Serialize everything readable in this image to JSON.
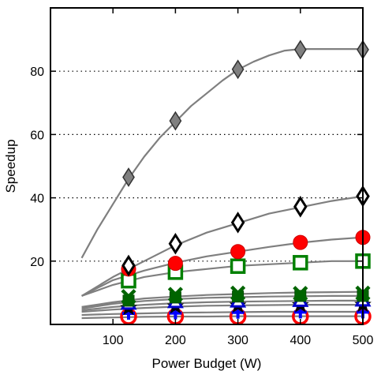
{
  "chart_data": {
    "type": "line",
    "xlabel": "Power Budget (W)",
    "ylabel": "Speedup",
    "xlim": [
      0,
      500
    ],
    "ylim": [
      0,
      100
    ],
    "xticks": [
      100,
      200,
      300,
      400,
      500
    ],
    "yticks": [
      20,
      40,
      60,
      80
    ],
    "grid": "horizontal dotted",
    "curve_color": "#7f7f7f",
    "series": [
      {
        "marker": "diamond",
        "fill": "#808080",
        "stroke": "#333333",
        "curve": {
          "x": [
            50,
            75,
            100,
            125,
            150,
            175,
            200,
            225,
            250,
            275,
            300,
            325,
            350,
            375,
            400,
            425,
            450,
            475,
            500
          ],
          "y": [
            21,
            30,
            38,
            46,
            53,
            59,
            64,
            69,
            73,
            77,
            80.5,
            83,
            85,
            86.5,
            87,
            87,
            87,
            87,
            87
          ]
        },
        "x": [
          125,
          200,
          300,
          400,
          500
        ],
        "y": [
          46.5,
          64.3,
          80.6,
          86.8,
          86.8
        ]
      },
      {
        "marker": "diamond",
        "fill": "#ffffff",
        "stroke": "#000000",
        "curve": {
          "x": [
            50,
            100,
            150,
            200,
            250,
            300,
            350,
            400,
            450,
            500
          ],
          "y": [
            9,
            15,
            20,
            25,
            29,
            32,
            35,
            37,
            39,
            40.5
          ]
        },
        "x": [
          125,
          200,
          300,
          400,
          500
        ],
        "y": [
          18.6,
          25.5,
          32.2,
          37.2,
          40.5
        ]
      },
      {
        "marker": "circle",
        "fill": "#ff0000",
        "stroke": "#cc0000",
        "curve": {
          "x": [
            50,
            100,
            150,
            200,
            250,
            300,
            350,
            400,
            450,
            500
          ],
          "y": [
            9,
            14,
            17,
            19.5,
            21.5,
            23,
            24.5,
            25.8,
            26.8,
            27.5
          ]
        },
        "x": [
          125,
          200,
          300,
          400,
          500
        ],
        "y": [
          17.5,
          19.3,
          23,
          25.9,
          27.5
        ]
      },
      {
        "marker": "square",
        "fill": "#ffffff",
        "stroke": "#008000",
        "curve": {
          "x": [
            50,
            100,
            150,
            200,
            250,
            300,
            350,
            400,
            450,
            500
          ],
          "y": [
            9,
            12.5,
            15,
            16.5,
            17.5,
            18.5,
            19,
            19.5,
            20,
            20
          ]
        },
        "x": [
          125,
          200,
          300,
          400,
          500
        ],
        "y": [
          13.8,
          16.5,
          18.4,
          19.5,
          20
        ]
      },
      {
        "marker": "x",
        "fill": "none",
        "stroke": "#006400",
        "curve": {
          "x": [
            50,
            100,
            150,
            200,
            250,
            300,
            350,
            400,
            450,
            500
          ],
          "y": [
            5.5,
            7,
            8.2,
            8.8,
            9.3,
            9.6,
            9.9,
            10.1,
            10.2,
            10.3
          ]
        },
        "x": [
          125,
          200,
          300,
          400,
          500
        ],
        "y": [
          8.8,
          9.5,
          9.9,
          9.8,
          9.9
        ]
      },
      {
        "marker": "square-filled",
        "fill": "#006400",
        "stroke": "#004d00",
        "curve": {
          "x": [
            50,
            100,
            150,
            200,
            250,
            300,
            350,
            400,
            450,
            500
          ],
          "y": [
            5,
            6.5,
            7.4,
            8,
            8.4,
            8.6,
            8.8,
            8.9,
            9,
            9
          ]
        },
        "x": [
          125,
          200,
          300,
          400,
          500
        ],
        "y": [
          7.5,
          8.5,
          8.8,
          9,
          9
        ]
      },
      {
        "marker": "triangle",
        "fill": "#ffffff",
        "stroke": "#0000cc",
        "curve": {
          "x": [
            50,
            100,
            150,
            200,
            250,
            300,
            350,
            400,
            450,
            500
          ],
          "y": [
            4.5,
            5.5,
            6.2,
            6.7,
            7,
            7.2,
            7.3,
            7.4,
            7.5,
            7.5
          ]
        },
        "x": [
          125,
          200,
          300,
          400,
          500
        ],
        "y": [
          6.5,
          7,
          7.2,
          7.4,
          7.5
        ]
      },
      {
        "marker": "star",
        "fill": "#000000",
        "stroke": "#000000",
        "curve": {
          "x": [
            50,
            100,
            150,
            200,
            250,
            300,
            350,
            400,
            450,
            500
          ],
          "y": [
            4,
            4.7,
            5.2,
            5.6,
            5.9,
            6,
            6.1,
            6.2,
            6.2,
            6.2
          ]
        },
        "x": [
          125,
          200,
          300,
          400,
          500
        ],
        "y": [
          5.2,
          5.7,
          6,
          6.1,
          6.2
        ]
      },
      {
        "marker": "plus",
        "fill": "none",
        "stroke": "#0000ff",
        "curve": {
          "x": [
            50,
            100,
            150,
            200,
            250,
            300,
            350,
            400,
            450,
            500
          ],
          "y": [
            3,
            3.3,
            3.5,
            3.7,
            3.8,
            3.9,
            4,
            4,
            4,
            4
          ]
        },
        "x": [
          125,
          200,
          300,
          400,
          500
        ],
        "y": [
          3.5,
          3.6,
          3.8,
          3.9,
          3.9
        ]
      },
      {
        "marker": "circle-open",
        "fill": "none",
        "stroke": "#ff0000",
        "curve": {
          "x": [
            50,
            100,
            150,
            200,
            250,
            300,
            350,
            400,
            450,
            500
          ],
          "y": [
            2,
            2.2,
            2.4,
            2.5,
            2.5,
            2.6,
            2.6,
            2.6,
            2.6,
            2.6
          ]
        },
        "x": [
          125,
          200,
          300,
          400,
          500
        ],
        "y": [
          2.5,
          2.5,
          2.5,
          2.5,
          2.5
        ]
      }
    ]
  }
}
